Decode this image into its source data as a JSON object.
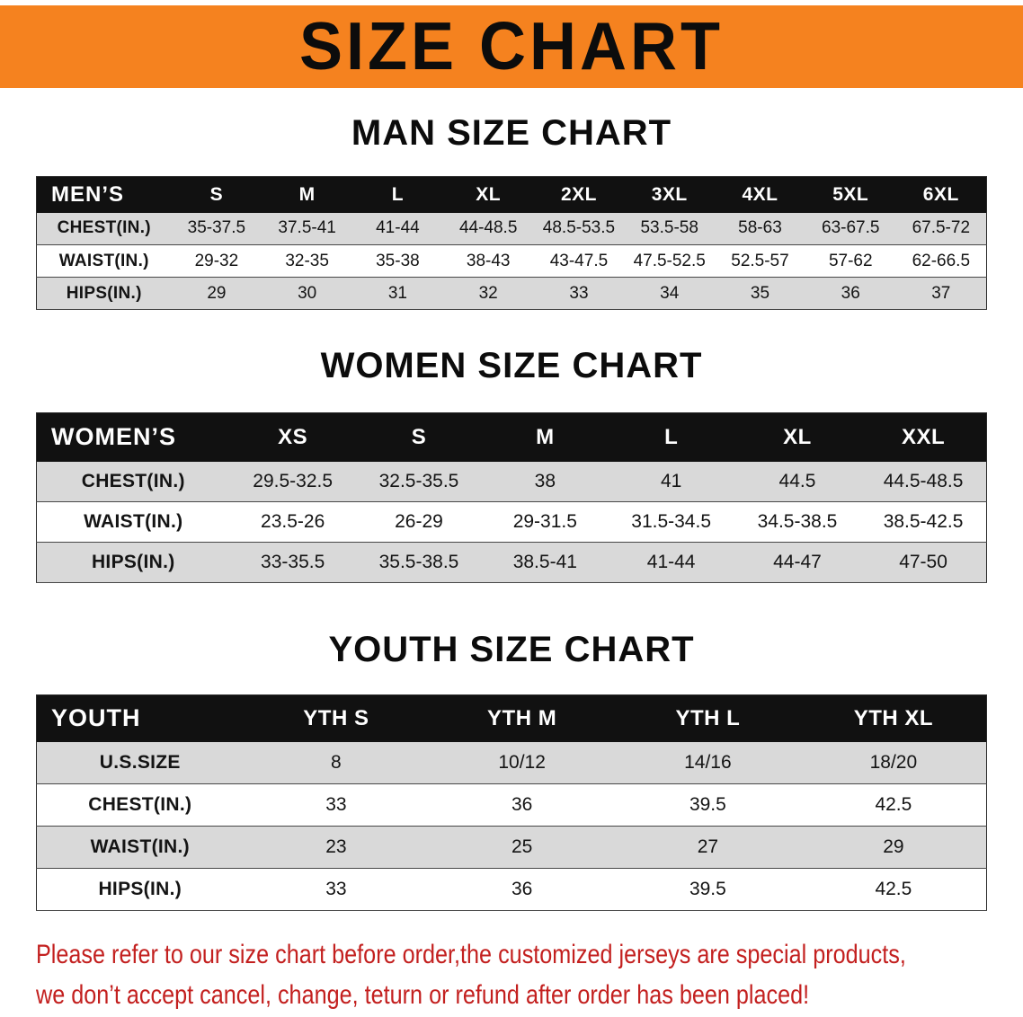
{
  "banner": {
    "title": "SIZE CHART"
  },
  "colors": {
    "banner_bg": "#F5821F",
    "header_bg": "#111111",
    "stripe": "#D9D9D9",
    "note_red": "#C3201F"
  },
  "sections": {
    "men": {
      "heading": "MAN SIZE CHART",
      "table": {
        "header": [
          "MEN’S",
          "S",
          "M",
          "L",
          "XL",
          "2XL",
          "3XL",
          "4XL",
          "5XL",
          "6XL"
        ],
        "rows": [
          [
            "CHEST(IN.)",
            "35-37.5",
            "37.5-41",
            "41-44",
            "44-48.5",
            "48.5-53.5",
            "53.5-58",
            "58-63",
            "63-67.5",
            "67.5-72"
          ],
          [
            "WAIST(IN.)",
            "29-32",
            "32-35",
            "35-38",
            "38-43",
            "43-47.5",
            "47.5-52.5",
            "52.5-57",
            "57-62",
            "62-66.5"
          ],
          [
            "HIPS(IN.)",
            "29",
            "30",
            "31",
            "32",
            "33",
            "34",
            "35",
            "36",
            "37"
          ]
        ]
      }
    },
    "women": {
      "heading": "WOMEN SIZE CHART",
      "table": {
        "header": [
          "WOMEN’S",
          "XS",
          "S",
          "M",
          "L",
          "XL",
          "XXL"
        ],
        "rows": [
          [
            "CHEST(IN.)",
            "29.5-32.5",
            "32.5-35.5",
            "38",
            "41",
            "44.5",
            "44.5-48.5"
          ],
          [
            "WAIST(IN.)",
            "23.5-26",
            "26-29",
            "29-31.5",
            "31.5-34.5",
            "34.5-38.5",
            "38.5-42.5"
          ],
          [
            "HIPS(IN.)",
            "33-35.5",
            "35.5-38.5",
            "38.5-41",
            "41-44",
            "44-47",
            "47-50"
          ]
        ]
      }
    },
    "youth": {
      "heading": "YOUTH SIZE CHART",
      "table": {
        "header": [
          "YOUTH",
          "YTH S",
          "YTH M",
          "YTH L",
          "YTH XL"
        ],
        "rows": [
          [
            "U.S.SIZE",
            "8",
            "10/12",
            "14/16",
            "18/20"
          ],
          [
            "CHEST(IN.)",
            "33",
            "36",
            "39.5",
            "42.5"
          ],
          [
            "WAIST(IN.)",
            "23",
            "25",
            "27",
            "29"
          ],
          [
            "HIPS(IN.)",
            "33",
            "36",
            "39.5",
            "42.5"
          ]
        ]
      }
    }
  },
  "note": {
    "line1": "Please refer to our size chart before order,the customized jerseys are special products,",
    "line2": "we don’t accept cancel, change, teturn or refund after order has been placed!"
  }
}
